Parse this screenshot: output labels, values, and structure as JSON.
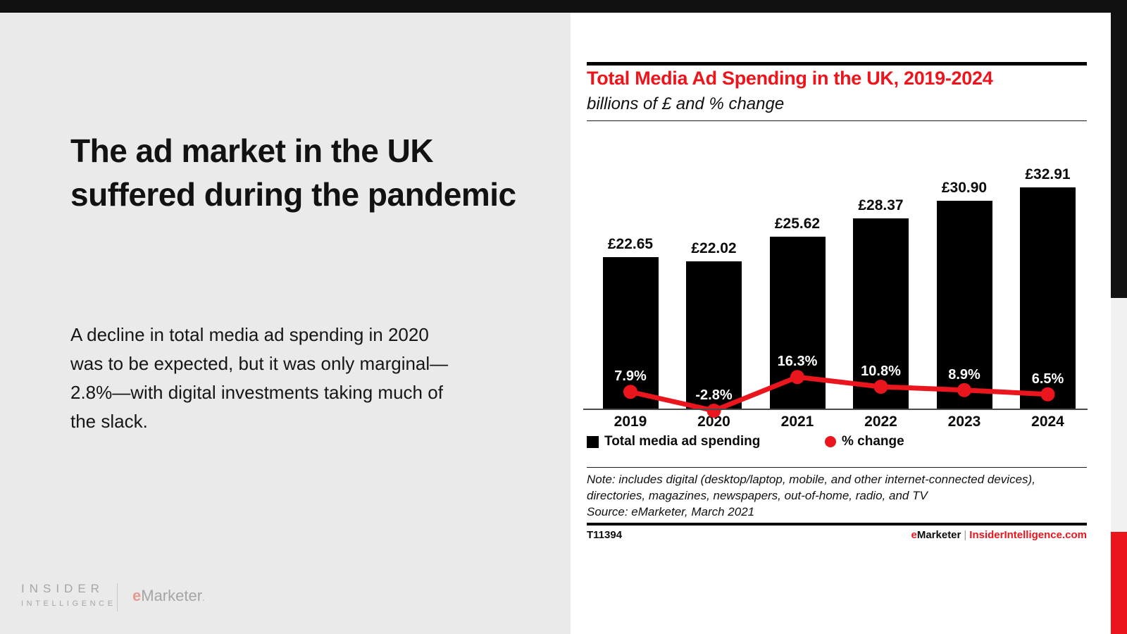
{
  "accent_red": "#ea151d",
  "slide": {
    "headline": "The ad market in the UK suffered during the pandemic",
    "body": "A decline in total media ad spending in 2020 was to be expected, but it was only marginal—2.8%—with digital investments taking much of the slack."
  },
  "brand_lockup": {
    "line1": "INSIDER",
    "line2": "INTELLIGENCE",
    "emarketer_e": "e",
    "emarketer_rest": "Marketer",
    "dot": "."
  },
  "chart_panel": {
    "title": "Total Media Ad Spending in the UK, 2019-2024",
    "subtitle": "billions of £ and % change",
    "legend": [
      {
        "label": "Total media ad spending",
        "swatch": "square",
        "color": "#000000"
      },
      {
        "label": "% change",
        "swatch": "circle",
        "color": "#ea151d"
      }
    ],
    "note": "Note: includes digital (desktop/laptop, mobile, and other internet-connected devices), directories, magazines, newspapers, out-of-home, radio, and TV",
    "source": "Source: eMarketer, March 2021",
    "chart_id": "T11394",
    "footer_brand": {
      "e": "e",
      "rest": "Marketer",
      "divider": "|",
      "site": "InsiderIntelligence.com"
    }
  },
  "chart_data": {
    "type": "bar",
    "title": "Total Media Ad Spending in the UK, 2019-2024",
    "subtitle": "billions of £ and % change",
    "categories": [
      "2019",
      "2020",
      "2021",
      "2022",
      "2023",
      "2024"
    ],
    "series": [
      {
        "name": "Total media ad spending",
        "type": "bar",
        "color": "#000000",
        "unit": "billions of £",
        "values": [
          22.65,
          22.02,
          25.62,
          28.37,
          30.9,
          32.91
        ],
        "labels": [
          "£22.65",
          "£22.02",
          "£25.62",
          "£28.37",
          "£30.90",
          "£32.91"
        ]
      },
      {
        "name": "% change",
        "type": "line",
        "color": "#ea151d",
        "unit": "%",
        "values": [
          7.9,
          -2.8,
          16.3,
          10.8,
          8.9,
          6.5
        ],
        "labels": [
          "7.9%",
          "-2.8%",
          "16.3%",
          "10.8%",
          "8.9%",
          "6.5%"
        ]
      }
    ],
    "ylabel": "",
    "xlabel": "",
    "grid": false,
    "legend_position": "bottom"
  }
}
